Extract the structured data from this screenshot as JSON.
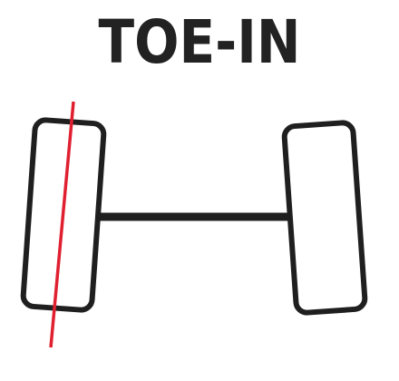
{
  "title": "TOE-IN",
  "colors": {
    "outline": "#1f1f1f",
    "toe_line": "#e02030",
    "background": "#ffffff"
  }
}
